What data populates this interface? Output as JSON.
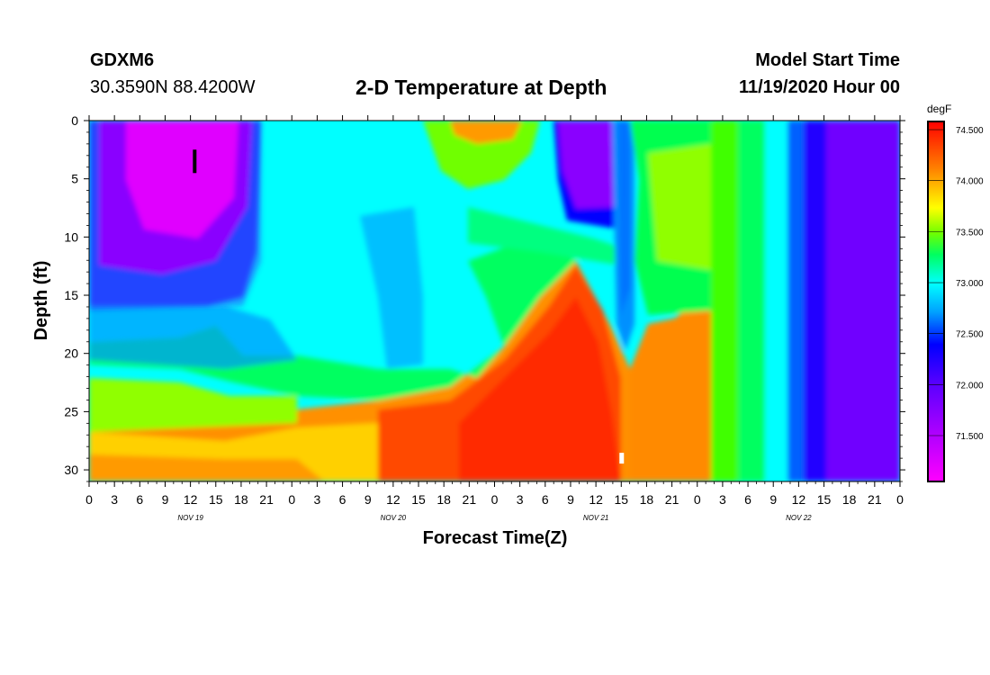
{
  "header": {
    "station_id": "GDXM6",
    "station_coords": "30.3590N 88.4200W",
    "title": "2-D Temperature at Depth",
    "start_label": "Model Start Time",
    "start_value": "11/19/2020 Hour 00"
  },
  "chart_data": {
    "type": "heatmap",
    "title": "2-D Temperature at Depth",
    "xlabel": "Forecast Time(Z)",
    "ylabel": "Depth (ft)",
    "x_tick_labels": [
      "0",
      "3",
      "6",
      "9",
      "12",
      "15",
      "18",
      "21",
      "0",
      "3",
      "6",
      "9",
      "12",
      "15",
      "18",
      "21",
      "0",
      "3",
      "6",
      "9",
      "12",
      "15",
      "18",
      "21",
      "0",
      "3",
      "6",
      "9",
      "12",
      "15",
      "18",
      "21",
      "0"
    ],
    "x_hours_range": [
      0,
      96
    ],
    "day_labels": [
      {
        "label": "NOV 19",
        "hour": 12
      },
      {
        "label": "NOV 20",
        "hour": 36
      },
      {
        "label": "NOV 21",
        "hour": 60
      },
      {
        "label": "NOV 22",
        "hour": 84
      }
    ],
    "y_ticks": [
      0,
      5,
      10,
      15,
      20,
      25,
      30
    ],
    "ylim": [
      31,
      0
    ],
    "colorbar": {
      "unit": "degF",
      "labels": [
        "74.500",
        "74.000",
        "73.500",
        "73.000",
        "72.500",
        "72.000",
        "71.500"
      ],
      "label_values": [
        74.5,
        74.0,
        73.5,
        73.0,
        72.5,
        72.0,
        71.5
      ],
      "range": [
        71.05,
        74.58
      ]
    },
    "markers": [
      {
        "name": "min",
        "hour": 12.5,
        "depth": 3.5,
        "color": "#000000"
      },
      {
        "name": "max",
        "hour": 63,
        "depth": 29,
        "color": "#ffffff"
      }
    ],
    "grid": false
  }
}
